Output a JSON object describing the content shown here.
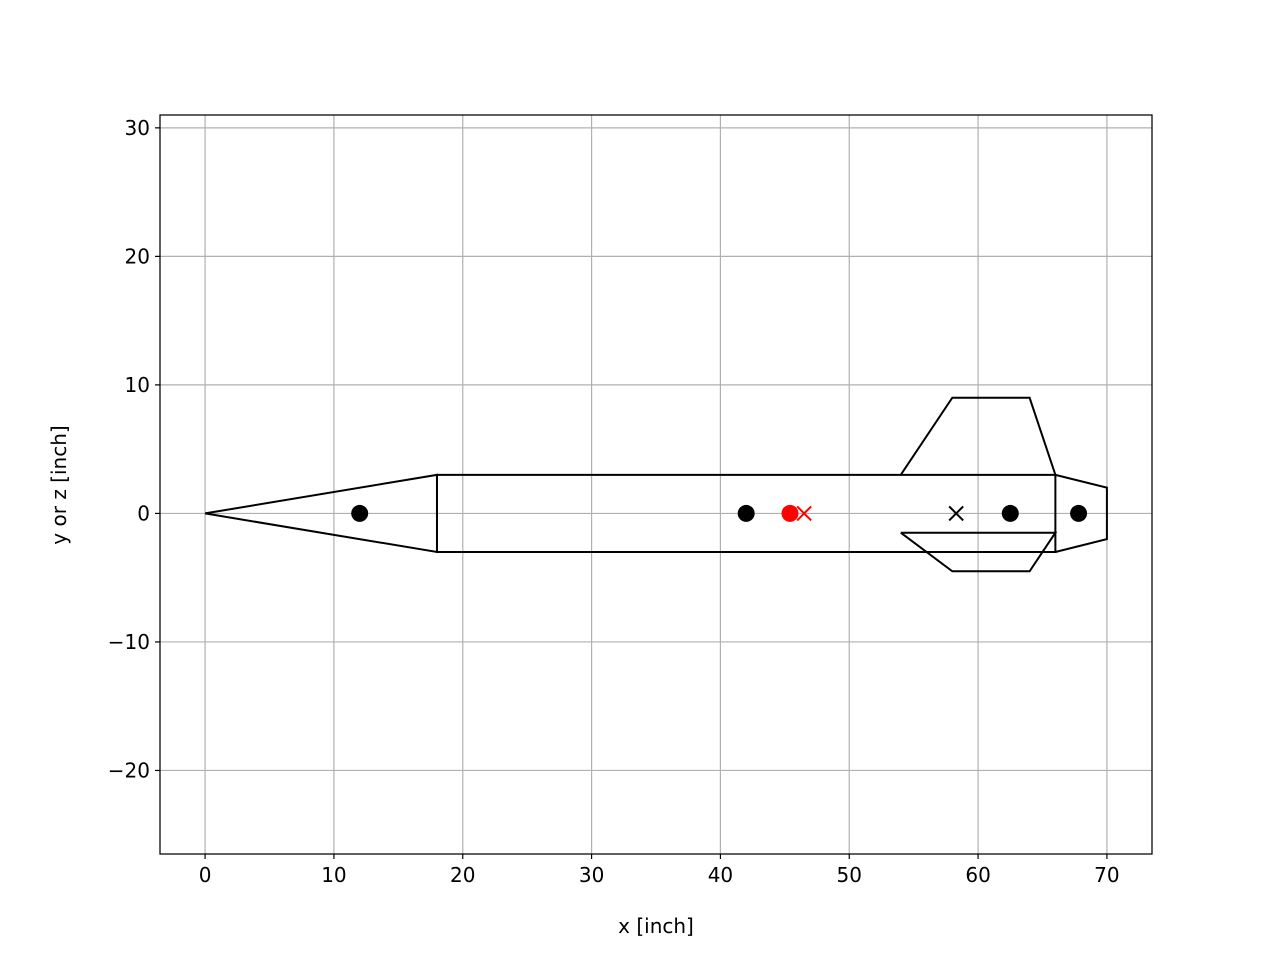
{
  "chart_data": {
    "type": "line",
    "title": "",
    "xlabel": "x [inch]",
    "ylabel": "y or z [inch]",
    "xlim": [
      -3.5,
      73.5
    ],
    "ylim": [
      -26.5,
      31
    ],
    "xticks": [
      0,
      10,
      20,
      30,
      40,
      50,
      60,
      70
    ],
    "yticks": [
      -20,
      -10,
      0,
      10,
      20,
      30
    ],
    "xtick_labels": [
      "0",
      "10",
      "20",
      "30",
      "40",
      "50",
      "60",
      "70"
    ],
    "ytick_labels": [
      "−20",
      "−10",
      "0",
      "10",
      "20",
      "30"
    ],
    "grid": true,
    "outline_color": "#000000",
    "highlight_color": "#ff0000",
    "grid_color": "#b0b0b0",
    "series": [
      {
        "kind": "line",
        "points": [
          [
            0,
            0
          ],
          [
            18,
            3
          ],
          [
            18,
            -3
          ],
          [
            0,
            0
          ]
        ]
      },
      {
        "kind": "line",
        "points": [
          [
            18,
            3
          ],
          [
            66,
            3
          ],
          [
            66,
            -3
          ],
          [
            18,
            -3
          ],
          [
            18,
            3
          ]
        ]
      },
      {
        "kind": "line",
        "points": [
          [
            66,
            3
          ],
          [
            70,
            2
          ],
          [
            70,
            -2
          ],
          [
            66,
            -3
          ]
        ]
      },
      {
        "kind": "line",
        "points": [
          [
            54,
            3
          ],
          [
            58,
            9
          ],
          [
            64,
            9
          ],
          [
            66,
            3
          ]
        ]
      },
      {
        "kind": "line",
        "points": [
          [
            54,
            -1.5
          ],
          [
            58,
            -4.5
          ],
          [
            64,
            -4.5
          ],
          [
            66,
            -1.5
          ],
          [
            54,
            -1.5
          ]
        ]
      },
      {
        "kind": "marker",
        "marker": "dot",
        "color": "#000000",
        "points": [
          [
            12,
            0
          ],
          [
            42,
            0
          ],
          [
            62.5,
            0
          ],
          [
            67.8,
            0
          ]
        ]
      },
      {
        "kind": "marker",
        "marker": "x",
        "color": "#000000",
        "points": [
          [
            58.3,
            0
          ]
        ]
      },
      {
        "kind": "marker",
        "marker": "dot",
        "color": "#ff0000",
        "points": [
          [
            45.4,
            0
          ]
        ]
      },
      {
        "kind": "marker",
        "marker": "x",
        "color": "#ff0000",
        "points": [
          [
            46.5,
            0
          ]
        ]
      }
    ]
  }
}
